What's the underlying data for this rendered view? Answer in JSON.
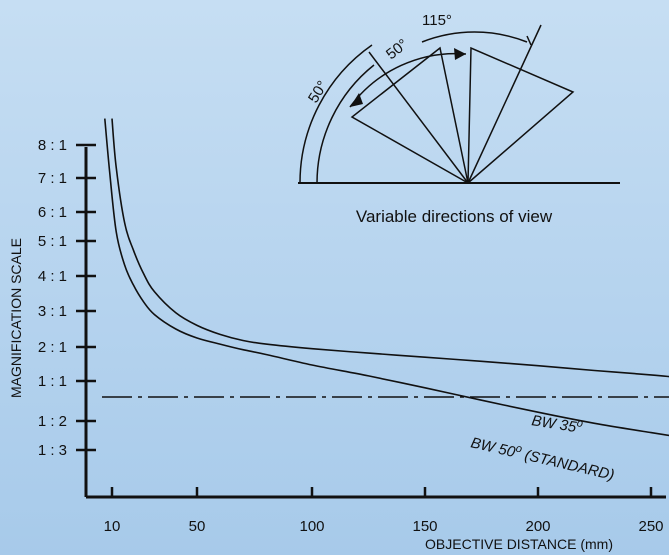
{
  "chart_data": {
    "type": "line",
    "xlabel": "OBJECTIVE DISTANCE (mm)",
    "ylabel": "MAGNIFICATION SCALE",
    "x_ticks": [
      10,
      50,
      100,
      150,
      200,
      250
    ],
    "y_tick_labels": [
      "1 : 3",
      "1 : 2",
      "1 : 1",
      "2 : 1",
      "3 : 1",
      "4 : 1",
      "5 : 1",
      "6 : 1",
      "7 : 1",
      "8 : 1"
    ],
    "xlim": [
      5,
      260
    ],
    "reference_line": {
      "label": "1 : 1",
      "style": "dash-dot"
    },
    "grid": false,
    "series": [
      {
        "name": "BW 35",
        "label_base": "BW 35",
        "label_superscript": "o",
        "label_suffix": "",
        "x": [
          10,
          12,
          16,
          20,
          25,
          30,
          40,
          50,
          60,
          70,
          80,
          100,
          125,
          150,
          175,
          200,
          225,
          250,
          258
        ],
        "y": [
          7.8,
          6.3,
          4.6,
          3.75,
          3.05,
          2.55,
          1.95,
          1.6,
          1.35,
          1.18,
          1.08,
          0.95,
          0.82,
          0.7,
          0.58,
          0.45,
          0.31,
          0.18,
          0.13
        ]
      },
      {
        "name": "BW 50 (STANDARD)",
        "label_base": "BW 50",
        "label_superscript": "o",
        "label_suffix": " (STANDARD)",
        "x": [
          7,
          9,
          12,
          16,
          20,
          25,
          30,
          40,
          50,
          60,
          70,
          80,
          100,
          125,
          150,
          175,
          200,
          225,
          250,
          258
        ],
        "y": [
          7.8,
          6.2,
          4.3,
          3.3,
          2.75,
          2.25,
          1.9,
          1.5,
          1.25,
          1.08,
          0.92,
          0.78,
          0.47,
          0.15,
          -0.17,
          -0.48,
          -0.78,
          -1.08,
          -1.4,
          -1.5
        ]
      }
    ]
  },
  "inset": {
    "caption": "Variable directions of view",
    "angle_labels": [
      "115°",
      "50°",
      "50°"
    ]
  },
  "colors": {
    "background_top": "#c6def3",
    "background_bottom": "#a7caea",
    "ink": "#111111"
  }
}
